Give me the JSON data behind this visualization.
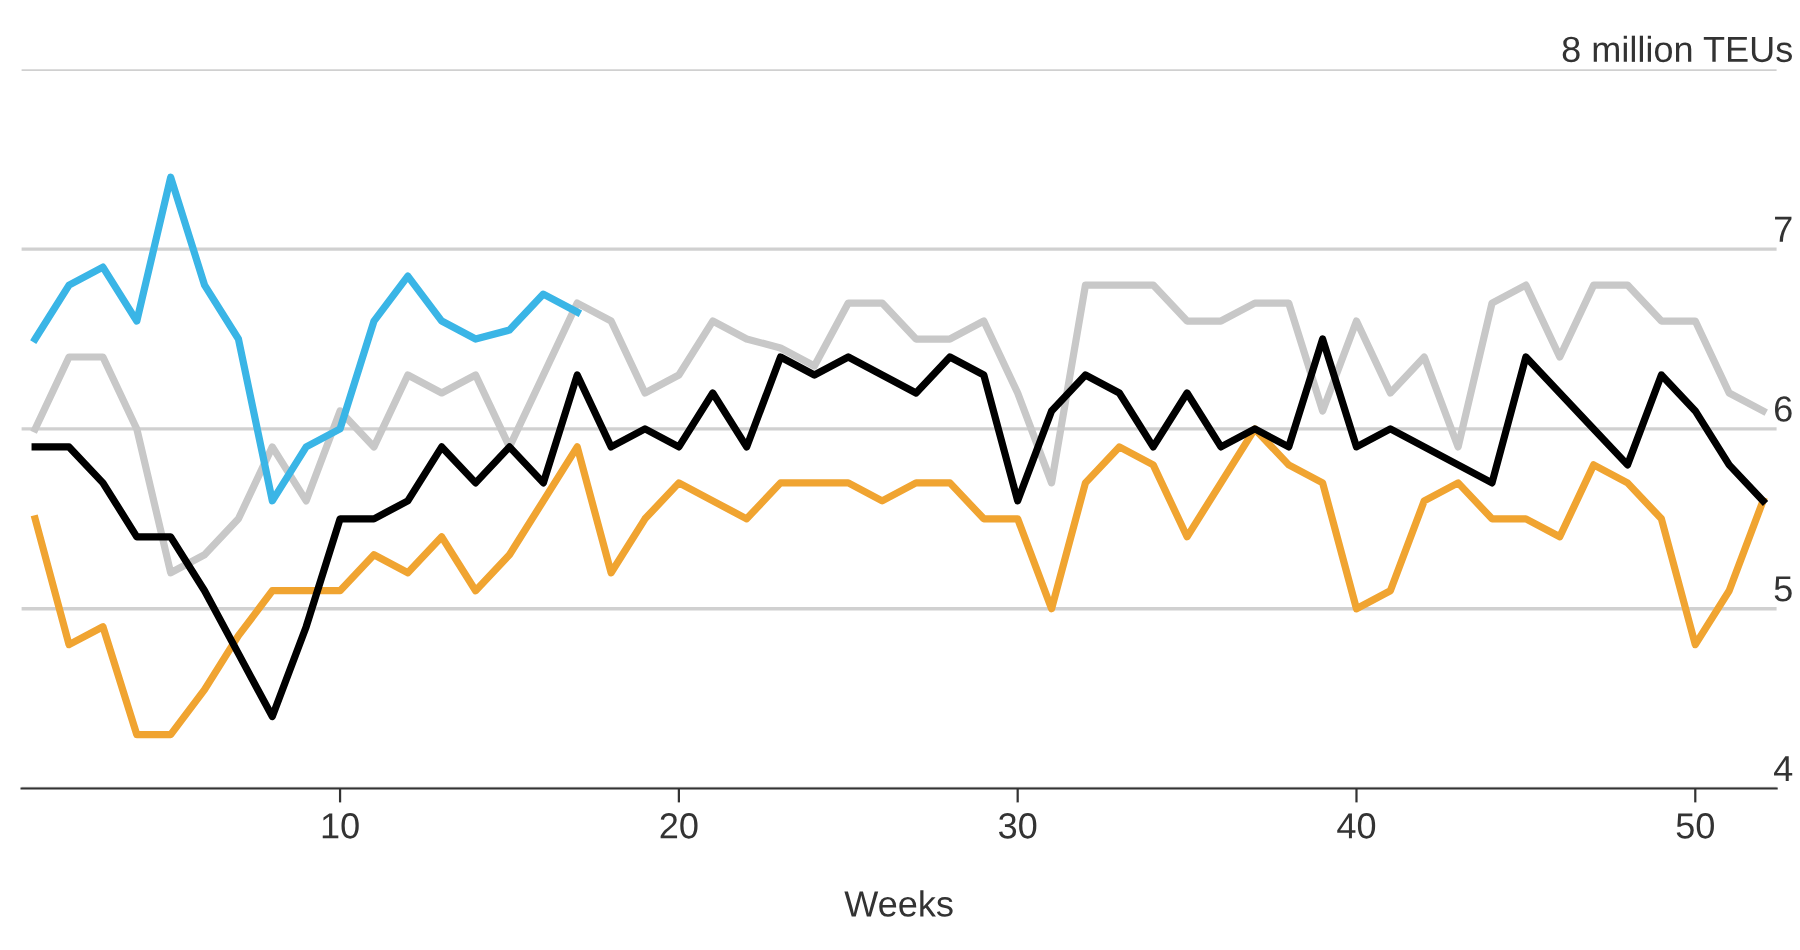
{
  "chart_data": {
    "type": "line",
    "xlabel": "Weeks",
    "x": [
      1,
      2,
      3,
      4,
      5,
      6,
      7,
      8,
      9,
      10,
      11,
      12,
      13,
      14,
      15,
      16,
      17,
      18,
      19,
      20,
      21,
      22,
      23,
      24,
      25,
      26,
      27,
      28,
      29,
      30,
      31,
      32,
      33,
      34,
      35,
      36,
      37,
      38,
      39,
      40,
      41,
      42,
      43,
      44,
      45,
      46,
      47,
      48,
      49,
      50,
      51,
      52
    ],
    "series": [
      {
        "color": "#c8c8c8",
        "values": [
          6.0,
          6.4,
          6.4,
          6.0,
          5.2,
          5.3,
          5.5,
          5.9,
          5.6,
          6.1,
          5.9,
          6.3,
          6.2,
          6.3,
          5.9,
          6.3,
          6.7,
          6.6,
          6.2,
          6.3,
          6.6,
          6.5,
          6.45,
          6.35,
          6.7,
          6.7,
          6.5,
          6.5,
          6.6,
          6.2,
          5.7,
          6.8,
          6.8,
          6.8,
          6.6,
          6.6,
          6.7,
          6.7,
          6.1,
          6.6,
          6.2,
          6.4,
          5.9,
          6.7,
          6.8,
          6.4,
          6.8,
          6.8,
          6.6,
          6.6,
          6.2,
          6.1
        ]
      },
      {
        "color": "#f0a431",
        "values": [
          5.5,
          4.8,
          4.9,
          4.3,
          4.3,
          4.55,
          4.85,
          5.1,
          5.1,
          5.1,
          5.3,
          5.2,
          5.4,
          5.1,
          5.3,
          5.6,
          5.9,
          5.2,
          5.5,
          5.7,
          5.6,
          5.5,
          5.7,
          5.7,
          5.7,
          5.6,
          5.7,
          5.7,
          5.5,
          5.5,
          5.0,
          5.7,
          5.9,
          5.8,
          5.4,
          5.7,
          6.0,
          5.8,
          5.7,
          5.0,
          5.1,
          5.6,
          5.7,
          5.5,
          5.5,
          5.4,
          5.8,
          5.7,
          5.5,
          4.8,
          5.1,
          5.6
        ]
      },
      {
        "color": "#000000",
        "values": [
          5.9,
          5.9,
          5.7,
          5.4,
          5.4,
          5.1,
          4.75,
          4.4,
          4.9,
          5.5,
          5.5,
          5.6,
          5.9,
          5.7,
          5.9,
          5.7,
          6.3,
          5.9,
          6.0,
          5.9,
          6.2,
          5.9,
          6.4,
          6.3,
          6.4,
          6.3,
          6.2,
          6.4,
          6.3,
          5.6,
          6.1,
          6.3,
          6.2,
          5.9,
          6.2,
          5.9,
          6.0,
          5.9,
          6.5,
          5.9,
          6.0,
          5.9,
          5.8,
          5.7,
          6.4,
          6.2,
          6.0,
          5.8,
          6.3,
          6.1,
          5.8,
          5.6
        ]
      },
      {
        "color": "#3ab5e6",
        "values": [
          6.5,
          6.8,
          6.9,
          6.6,
          7.4,
          6.8,
          6.5,
          5.6,
          5.9,
          6.0,
          6.6,
          6.85,
          6.6,
          6.5,
          6.55,
          6.75,
          6.65,
          null,
          null,
          null,
          null,
          null,
          null,
          null,
          null,
          null,
          null,
          null,
          null,
          null,
          null,
          null,
          null,
          null,
          null,
          null,
          null,
          null,
          null,
          null,
          null,
          null,
          null,
          null,
          null,
          null,
          null,
          null,
          null,
          null,
          null,
          null
        ]
      }
    ],
    "xlim": [
      0.6,
      52.4
    ],
    "ylim": [
      4,
      8
    ],
    "xticks": [
      10,
      20,
      30,
      40,
      50
    ],
    "yticks": [
      4,
      5,
      6,
      7,
      {
        "value": 8,
        "label": "8 million TEUs"
      }
    ],
    "grid": "y",
    "line_style": "solid"
  }
}
